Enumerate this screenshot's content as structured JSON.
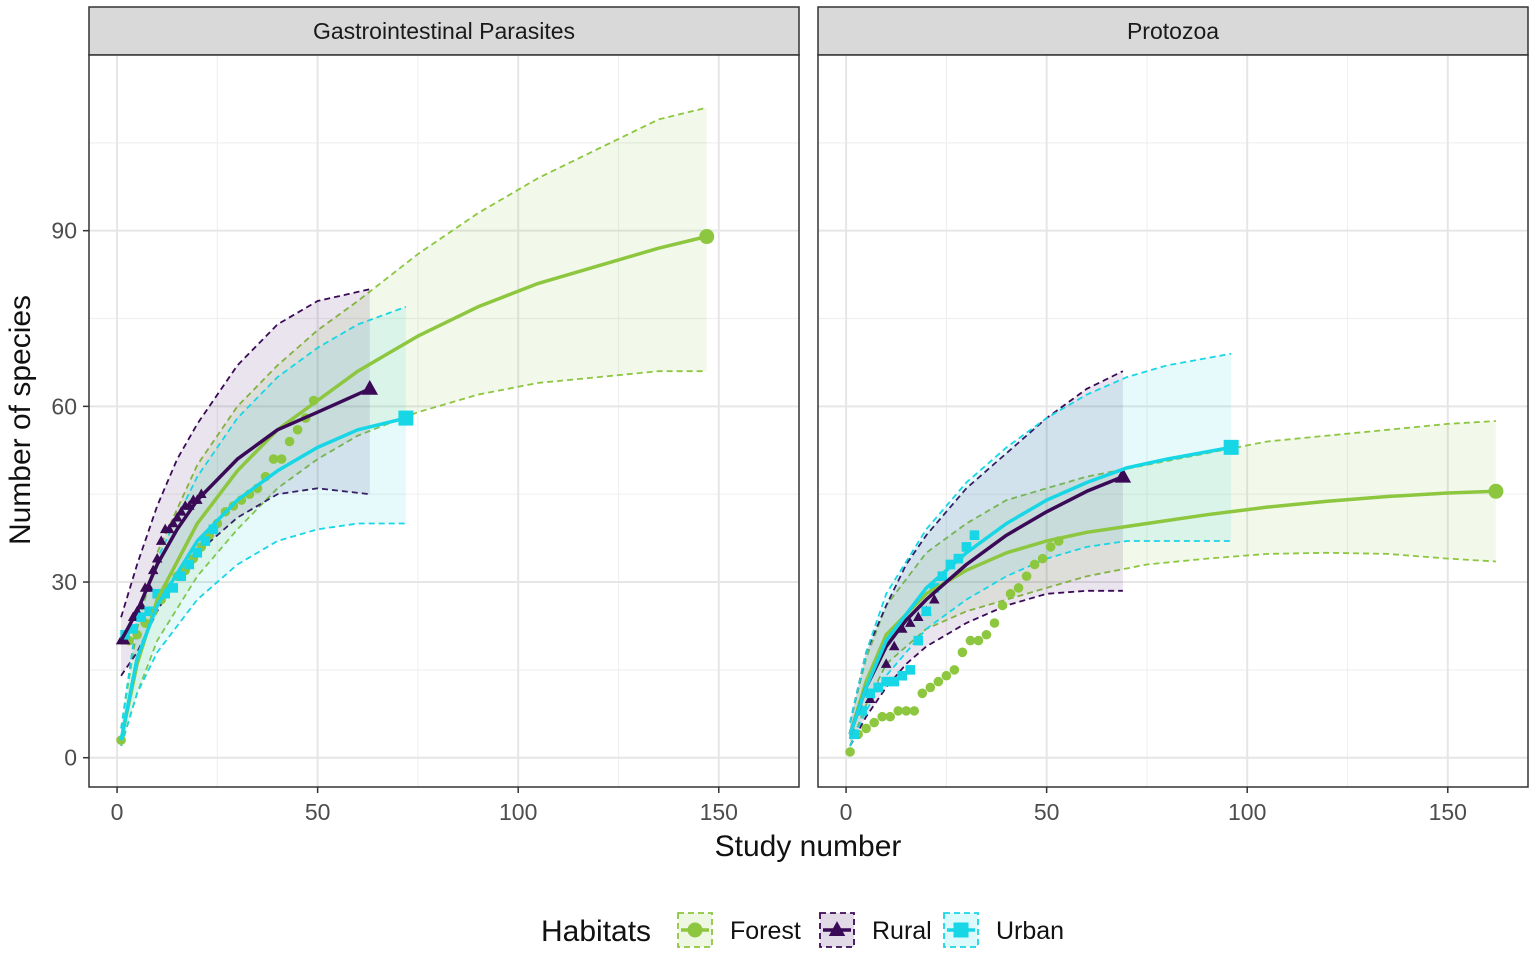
{
  "chart_data": {
    "type": "line",
    "ylabel": "Number of species",
    "xlabel": "Study number",
    "xlim": [
      -7,
      170
    ],
    "ylim": [
      -5,
      120
    ],
    "x_ticks": [
      0,
      50,
      100,
      150
    ],
    "y_ticks": [
      0,
      30,
      60,
      90
    ],
    "legend": {
      "title": "Habitats",
      "placement": "bottom",
      "entries": [
        {
          "name": "Forest",
          "color": "#8DC63F",
          "marker": "circle"
        },
        {
          "name": "Rural",
          "color": "#3B0A57",
          "marker": "triangle"
        },
        {
          "name": "Urban",
          "color": "#17D6E6",
          "marker": "square"
        }
      ]
    },
    "panels": [
      {
        "title": "Gastrointestinal Parasites",
        "series": [
          {
            "name": "Forest",
            "color": "#8DC63F",
            "marker": "circle",
            "observed_n": 147,
            "curve": {
              "x": [
                1,
                5,
                10,
                20,
                30,
                40,
                50,
                60,
                75,
                90,
                105,
                120,
                135,
                147
              ],
              "y": [
                3,
                16,
                27,
                40,
                49,
                56,
                61,
                66,
                72,
                77,
                81,
                84,
                87,
                89
              ]
            },
            "ci_upper": [
              5,
              22,
              35,
              50,
              60,
              67,
              73,
              78,
              86,
              93,
              99,
              104,
              109,
              111
            ],
            "ci_lower": [
              2,
              11,
              20,
              31,
              39,
              46,
              51,
              55,
              59,
              62,
              64,
              65,
              66,
              66
            ],
            "points": {
              "x": [
                1,
                3,
                5,
                7,
                9,
                11,
                13,
                15,
                17,
                19,
                21,
                23,
                25,
                27,
                29,
                31,
                33,
                35,
                37,
                39,
                41,
                43,
                45,
                47,
                49
              ],
              "y": [
                3,
                20,
                21,
                23,
                25,
                27,
                29,
                31,
                32,
                34,
                36,
                38,
                40,
                42,
                43,
                44,
                45,
                46,
                48,
                51,
                51,
                54,
                56,
                58,
                61
              ]
            }
          },
          {
            "name": "Rural",
            "color": "#3B0A57",
            "marker": "triangle",
            "observed_n": 63,
            "curve": {
              "x": [
                1,
                5,
                10,
                15,
                20,
                30,
                40,
                50,
                63
              ],
              "y": [
                20,
                25,
                33,
                39,
                44,
                51,
                56,
                59,
                63
              ]
            },
            "ci_upper": [
              24,
              33,
              43,
              51,
              57,
              67,
              74,
              78,
              80
            ],
            "ci_lower": [
              14,
              18,
              25,
              31,
              35,
              41,
              45,
              46,
              45
            ],
            "points": {
              "x": [
                1,
                2,
                3,
                4,
                5,
                6,
                7,
                8,
                9,
                10,
                11,
                12,
                13,
                14,
                15,
                16,
                17,
                18,
                19,
                20,
                21
              ],
              "y": [
                20,
                20,
                22,
                24,
                25,
                26,
                29,
                29,
                32,
                34,
                37,
                39,
                39,
                40,
                41,
                42,
                43,
                43,
                44,
                44,
                45
              ]
            }
          },
          {
            "name": "Urban",
            "color": "#17D6E6",
            "marker": "square",
            "observed_n": 72,
            "curve": {
              "x": [
                1,
                5,
                10,
                20,
                30,
                40,
                50,
                60,
                72
              ],
              "y": [
                3,
                17,
                26,
                37,
                44,
                49,
                53,
                56,
                58
              ]
            },
            "ci_upper": [
              5,
              24,
              34,
              48,
              58,
              65,
              70,
              74,
              77
            ],
            "ci_lower": [
              2,
              11,
              18,
              27,
              33,
              37,
              39,
              40,
              40
            ],
            "points": {
              "x": [
                2,
                4,
                6,
                8,
                10,
                12,
                14,
                16,
                18,
                20,
                22,
                24
              ],
              "y": [
                21,
                22,
                24,
                25,
                28,
                28,
                29,
                31,
                33,
                35,
                37,
                39
              ]
            }
          }
        ]
      },
      {
        "title": "Protozoa",
        "series": [
          {
            "name": "Forest",
            "color": "#8DC63F",
            "marker": "circle",
            "observed_n": 162,
            "curve": {
              "x": [
                1,
                5,
                10,
                20,
                30,
                40,
                50,
                60,
                75,
                90,
                105,
                120,
                135,
                150,
                162
              ],
              "y": [
                4,
                13,
                21,
                28,
                32,
                35,
                37,
                38.5,
                40,
                41.5,
                42.8,
                43.8,
                44.6,
                45.2,
                45.5
              ]
            },
            "ci_upper": [
              6,
              17,
              26,
              35,
              40,
              44,
              46,
              48,
              50,
              52,
              54,
              55,
              56,
              57,
              57.5
            ],
            "ci_lower": [
              2,
              9,
              16,
              22,
              25,
              27,
              29,
              31,
              33,
              34,
              34.8,
              35,
              34.8,
              34,
              33.5
            ],
            "points": {
              "x": [
                1,
                3,
                5,
                7,
                9,
                11,
                13,
                15,
                17,
                19,
                21,
                23,
                25,
                27,
                29,
                31,
                33,
                35,
                37,
                39,
                41,
                43,
                45,
                47,
                49,
                51,
                53
              ],
              "y": [
                1,
                4,
                5,
                6,
                7,
                7,
                8,
                8,
                8,
                11,
                12,
                13,
                14,
                15,
                18,
                20,
                20,
                21,
                23,
                26,
                28,
                29,
                31,
                33,
                34,
                36,
                37
              ]
            }
          },
          {
            "name": "Rural",
            "color": "#3B0A57",
            "marker": "triangle",
            "observed_n": 69,
            "curve": {
              "x": [
                1,
                5,
                10,
                15,
                20,
                30,
                40,
                50,
                60,
                69
              ],
              "y": [
                4,
                12,
                19,
                23.5,
                27,
                33,
                38,
                42,
                45.5,
                48
              ]
            },
            "ci_upper": [
              6,
              18,
              26,
              33,
              38,
              46,
              52,
              58,
              63,
              66
            ],
            "ci_lower": [
              2,
              7,
              12,
              16,
              19,
              23,
              26,
              28,
              28.5,
              28.5
            ],
            "points": {
              "x": [
                2,
                4,
                6,
                8,
                10,
                12,
                14,
                16,
                18,
                20,
                22
              ],
              "y": [
                4,
                8,
                10,
                12,
                16,
                19,
                22,
                23,
                24,
                25,
                27
              ]
            }
          },
          {
            "name": "Urban",
            "color": "#17D6E6",
            "marker": "square",
            "observed_n": 96,
            "curve": {
              "x": [
                1,
                5,
                10,
                20,
                30,
                40,
                50,
                60,
                70,
                80,
                96
              ],
              "y": [
                4,
                12,
                20,
                29,
                35,
                40,
                44,
                47,
                49.5,
                51,
                53
              ]
            },
            "ci_upper": [
              6,
              18,
              28,
              39,
              47,
              53,
              58,
              62,
              65,
              67,
              69
            ],
            "ci_lower": [
              2,
              8,
              14,
              22,
              27,
              31,
              34,
              36,
              37,
              37,
              37
            ],
            "points": {
              "x": [
                2,
                4,
                6,
                8,
                10,
                12,
                14,
                16,
                18,
                20,
                22,
                24,
                26,
                28,
                30,
                32
              ],
              "y": [
                4,
                8,
                11,
                12,
                13,
                13,
                14,
                15,
                20,
                25,
                29,
                31,
                33,
                34,
                36,
                38
              ]
            }
          }
        ]
      }
    ]
  }
}
